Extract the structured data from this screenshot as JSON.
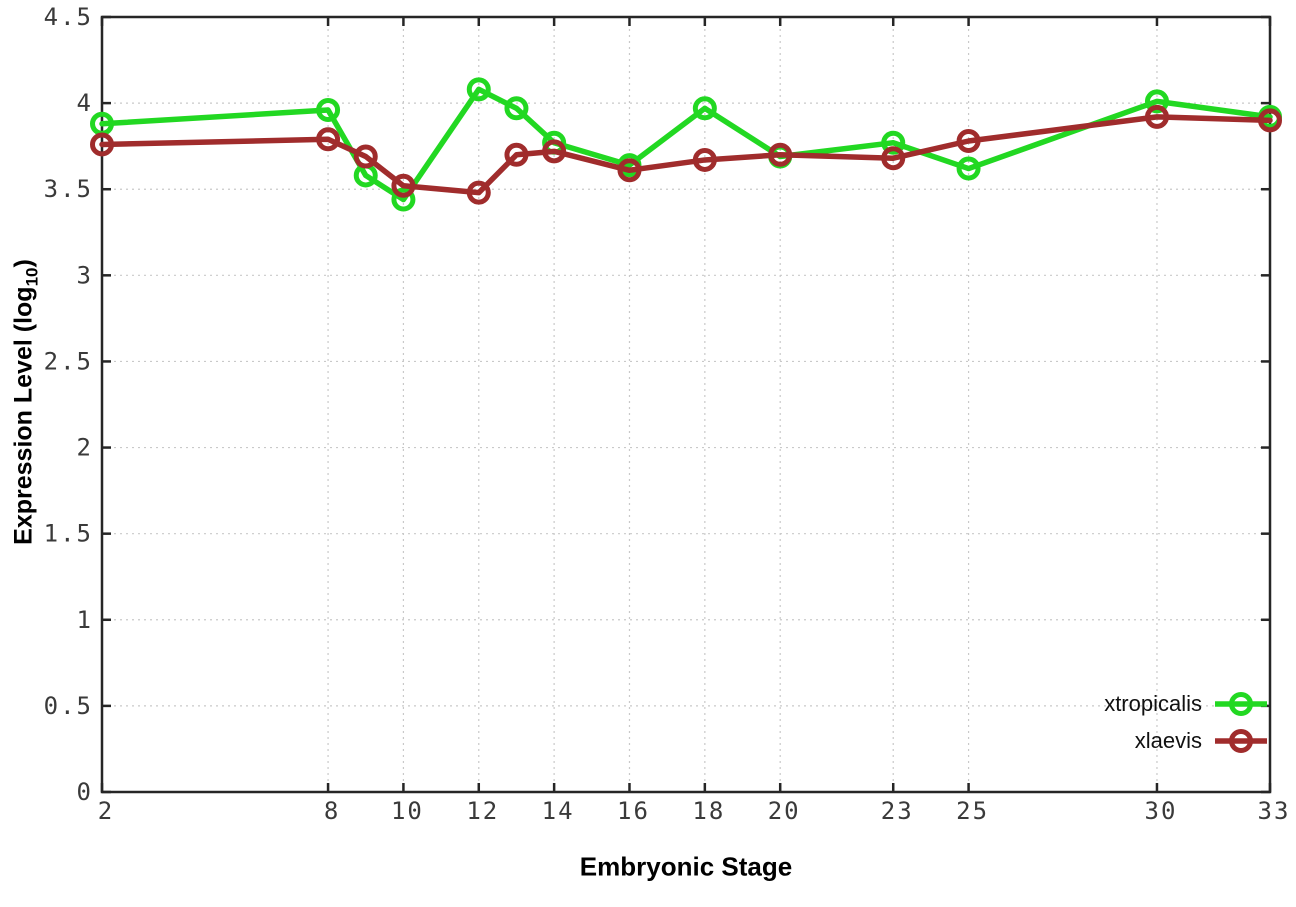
{
  "chart_data": {
    "type": "line",
    "title": "",
    "xlabel": "Embryonic Stage",
    "ylabel_prefix": "Expression Level (log",
    "ylabel_sub": "10",
    "ylabel_suffix": ")",
    "x": [
      2,
      8,
      9,
      10,
      12,
      13,
      14,
      16,
      18,
      20,
      23,
      25,
      30,
      33
    ],
    "series": [
      {
        "name": "xtropicalis",
        "color": "#22d822",
        "values": [
          3.88,
          3.96,
          3.58,
          3.44,
          4.08,
          3.97,
          3.77,
          3.64,
          3.97,
          3.69,
          3.77,
          3.62,
          4.01,
          3.92
        ]
      },
      {
        "name": "xlaevis",
        "color": "#a02c2c",
        "values": [
          3.76,
          3.79,
          3.69,
          3.52,
          3.48,
          3.7,
          3.72,
          3.61,
          3.67,
          3.7,
          3.68,
          3.78,
          3.92,
          3.9
        ]
      }
    ],
    "x_ticks": [
      "2",
      "8",
      "10",
      "12",
      "14",
      "16",
      "18",
      "20",
      "23",
      "25",
      "30",
      "33"
    ],
    "y_ticks": [
      "0",
      "0.5",
      "1",
      "1.5",
      "2",
      "2.5",
      "3",
      "3.5",
      "4",
      "4.5"
    ],
    "xlim": [
      2,
      33
    ],
    "ylim": [
      0,
      4.5
    ],
    "grid": true,
    "legend_position": "bottom-right",
    "marker": "open-circle",
    "grid_color": "#c9c9c9",
    "axis_color": "#262626",
    "tick_label_color": "#3a3a3a"
  }
}
